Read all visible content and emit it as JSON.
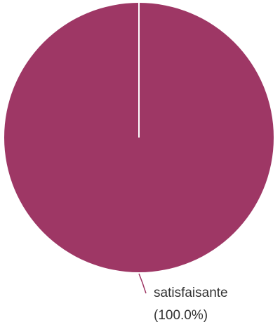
{
  "chart_data": {
    "type": "pie",
    "slices": [
      {
        "label": "satisfaisante",
        "value": 100.0,
        "percent_label": "(100.0%)",
        "color": "#9e3765"
      }
    ],
    "title": "",
    "legend": "none"
  }
}
